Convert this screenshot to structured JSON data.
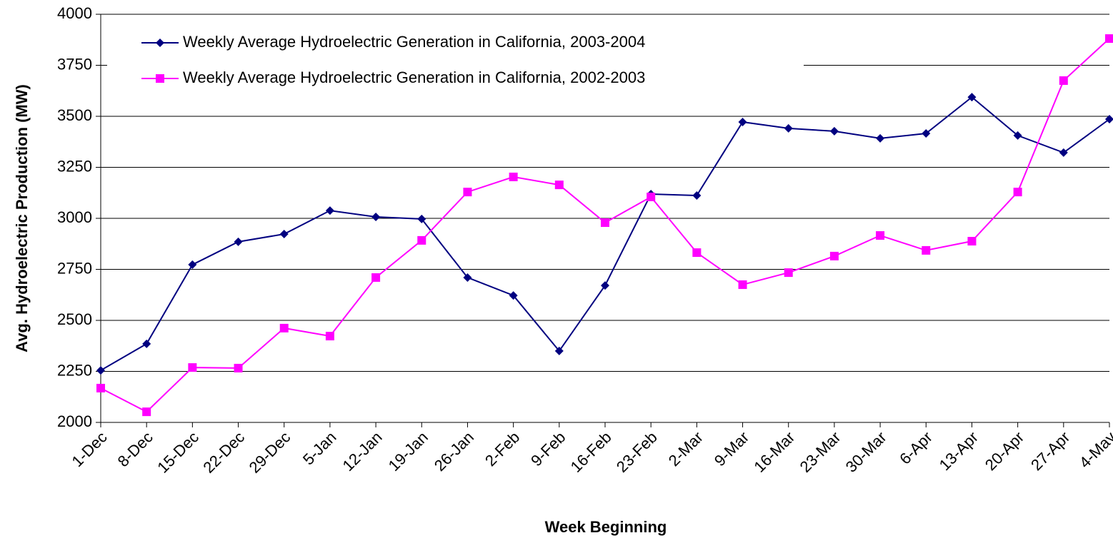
{
  "chart_data": {
    "type": "line",
    "x_label": "Week Beginning",
    "y_label": "Avg. Hydroelectric Production (MW)",
    "categories": [
      "1-Dec",
      "8-Dec",
      "15-Dec",
      "22-Dec",
      "29-Dec",
      "5-Jan",
      "12-Jan",
      "19-Jan",
      "26-Jan",
      "2-Feb",
      "9-Feb",
      "16-Feb",
      "23-Feb",
      "2-Mar",
      "9-Mar",
      "16-Mar",
      "23-Mar",
      "30-Mar",
      "6-Apr",
      "13-Apr",
      "20-Apr",
      "27-Apr",
      "4-May"
    ],
    "series": [
      {
        "name": "Weekly Average Hydroelectric Generation in California, 2003-2004",
        "color": "#000080",
        "marker": "diamond",
        "values": [
          2255,
          2385,
          2773,
          2885,
          2923,
          3038,
          3007,
          2997,
          2710,
          2622,
          2350,
          2671,
          3119,
          3112,
          3472,
          3441,
          3427,
          3392,
          3416,
          3594,
          3406,
          3322,
          3486
        ]
      },
      {
        "name": "Weekly Average Hydroelectric Generation in California, 2002-2003",
        "color": "#ff00ff",
        "marker": "square",
        "values": [
          2168,
          2052,
          2269,
          2266,
          2462,
          2423,
          2710,
          2892,
          3129,
          3203,
          3164,
          2979,
          3105,
          2832,
          2675,
          2734,
          2815,
          2916,
          2843,
          2888,
          3129,
          3675,
          3881
        ]
      }
    ],
    "ylim": [
      2000,
      4000
    ],
    "yticks": [
      2000,
      2250,
      2500,
      2750,
      3000,
      3250,
      3500,
      3750,
      4000
    ],
    "grid": true,
    "legend": "top-left"
  }
}
